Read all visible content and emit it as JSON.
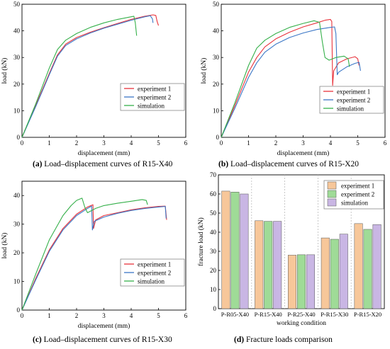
{
  "colors": {
    "experiment_1": "#e8323b",
    "experiment_2": "#3b77c6",
    "simulation": "#35b04a",
    "bar_1": "#f7c79a",
    "bar_2": "#9fdb97",
    "bar_3": "#c9b6e4"
  },
  "captions": [
    {
      "tag": "(a)",
      "text": " Load–displacement curves of R15-X40"
    },
    {
      "tag": "(b)",
      "text": " Load–displacement curves of R15-X20"
    },
    {
      "tag": "(c)",
      "text": " Load–displacement curves of R15-X30"
    },
    {
      "tag": "(d)",
      "text": " Fracture loads comparison"
    }
  ],
  "chart_data": [
    {
      "type": "line",
      "title": "",
      "xlabel": "displacement (mm)",
      "ylabel": "load (kN)",
      "xlim": [
        0,
        6
      ],
      "ylim": [
        0,
        50
      ],
      "xticks": [
        0,
        1,
        2,
        3,
        4,
        5,
        6
      ],
      "yticks": [
        0,
        10,
        20,
        30,
        40,
        50
      ],
      "legend": "lower-right",
      "series": [
        {
          "name": "experiment 1",
          "color": "#e8323b",
          "points": [
            [
              0,
              0
            ],
            [
              0.5,
              12
            ],
            [
              1.0,
              24
            ],
            [
              1.3,
              31
            ],
            [
              1.6,
              35
            ],
            [
              2.0,
              37.5
            ],
            [
              2.5,
              39.5
            ],
            [
              3.0,
              41.2
            ],
            [
              3.5,
              42.8
            ],
            [
              4.0,
              44.3
            ],
            [
              4.5,
              45.5
            ],
            [
              4.8,
              46.0
            ],
            [
              4.9,
              45.8
            ],
            [
              4.95,
              43.5
            ],
            [
              5.0,
              42.0
            ]
          ]
        },
        {
          "name": "experiment 2",
          "color": "#3b77c6",
          "points": [
            [
              0,
              0
            ],
            [
              0.5,
              11.5
            ],
            [
              1.0,
              23.5
            ],
            [
              1.3,
              30.5
            ],
            [
              1.6,
              34.5
            ],
            [
              2.0,
              37
            ],
            [
              2.5,
              39.2
            ],
            [
              3.0,
              41.0
            ],
            [
              3.5,
              42.5
            ],
            [
              4.0,
              44.0
            ],
            [
              4.5,
              45.3
            ],
            [
              4.7,
              45.7
            ],
            [
              4.78,
              44.5
            ],
            [
              4.8,
              43.0
            ]
          ]
        },
        {
          "name": "simulation",
          "color": "#35b04a",
          "points": [
            [
              0,
              0
            ],
            [
              0.5,
              12.5
            ],
            [
              1.0,
              26
            ],
            [
              1.3,
              33
            ],
            [
              1.6,
              36.5
            ],
            [
              2.0,
              39
            ],
            [
              2.5,
              41.3
            ],
            [
              3.0,
              43
            ],
            [
              3.5,
              44.3
            ],
            [
              4.0,
              45.3
            ],
            [
              4.1,
              45.5
            ],
            [
              4.15,
              43
            ],
            [
              4.2,
              38.2
            ]
          ]
        }
      ]
    },
    {
      "type": "line",
      "title": "",
      "xlabel": "displacement (mm)",
      "ylabel": "load (kN)",
      "xlim": [
        0,
        6
      ],
      "ylim": [
        0,
        50
      ],
      "xticks": [
        0,
        1,
        2,
        3,
        4,
        5,
        6
      ],
      "yticks": [
        0,
        10,
        20,
        30,
        40,
        50
      ],
      "legend": "lower-right",
      "series": [
        {
          "name": "experiment 1",
          "color": "#e8323b",
          "points": [
            [
              0,
              0
            ],
            [
              0.5,
              12
            ],
            [
              1.0,
              24.5
            ],
            [
              1.3,
              30
            ],
            [
              1.6,
              34
            ],
            [
              2.0,
              37
            ],
            [
              2.5,
              39.5
            ],
            [
              3.0,
              41.5
            ],
            [
              3.5,
              43
            ],
            [
              3.8,
              44
            ],
            [
              4.0,
              44.3
            ],
            [
              4.05,
              43.5
            ],
            [
              4.08,
              19.5
            ],
            [
              4.12,
              25
            ],
            [
              4.3,
              28
            ],
            [
              4.6,
              29.5
            ],
            [
              4.9,
              30.3
            ],
            [
              5.0,
              29.5
            ],
            [
              5.05,
              27
            ]
          ]
        },
        {
          "name": "experiment 2",
          "color": "#3b77c6",
          "points": [
            [
              0,
              0
            ],
            [
              0.5,
              11
            ],
            [
              1.0,
              22.5
            ],
            [
              1.3,
              28
            ],
            [
              1.6,
              32
            ],
            [
              2.0,
              35
            ],
            [
              2.5,
              37.5
            ],
            [
              3.0,
              39.2
            ],
            [
              3.5,
              40.5
            ],
            [
              4.0,
              41.3
            ],
            [
              4.15,
              41.5
            ],
            [
              4.2,
              39
            ],
            [
              4.25,
              23.5
            ],
            [
              4.3,
              24.5
            ],
            [
              4.6,
              26.5
            ],
            [
              4.9,
              27.8
            ],
            [
              5.05,
              28.2
            ],
            [
              5.1,
              25
            ]
          ]
        },
        {
          "name": "simulation",
          "color": "#35b04a",
          "points": [
            [
              0,
              0
            ],
            [
              0.5,
              13
            ],
            [
              1.0,
              27
            ],
            [
              1.3,
              33.5
            ],
            [
              1.6,
              36.5
            ],
            [
              2.0,
              39
            ],
            [
              2.5,
              41.3
            ],
            [
              3.0,
              42.8
            ],
            [
              3.4,
              43.8
            ],
            [
              3.6,
              43.2
            ],
            [
              3.7,
              36
            ],
            [
              3.8,
              30
            ],
            [
              3.95,
              29
            ],
            [
              4.2,
              30
            ],
            [
              4.5,
              30.5
            ],
            [
              4.65,
              29.5
            ],
            [
              4.7,
              26.5
            ]
          ]
        }
      ]
    },
    {
      "type": "line",
      "title": "",
      "xlabel": "displacement (mm)",
      "ylabel": "load (kN)",
      "xlim": [
        0,
        6
      ],
      "ylim": [
        0,
        45
      ],
      "xticks": [
        0,
        1,
        2,
        3,
        4,
        5,
        6
      ],
      "yticks": [
        0,
        10,
        20,
        30,
        40
      ],
      "legend": "lower-right",
      "series": [
        {
          "name": "experiment 1",
          "color": "#e8323b",
          "points": [
            [
              0,
              0
            ],
            [
              0.5,
              11
            ],
            [
              1.0,
              21
            ],
            [
              1.5,
              28.5
            ],
            [
              2.0,
              33.5
            ],
            [
              2.4,
              36
            ],
            [
              2.6,
              36.8
            ],
            [
              2.62,
              28.5
            ],
            [
              2.7,
              31.5
            ],
            [
              3.0,
              33
            ],
            [
              3.5,
              34
            ],
            [
              4.0,
              35
            ],
            [
              4.5,
              35.7
            ],
            [
              5.0,
              36.2
            ],
            [
              5.25,
              36.3
            ],
            [
              5.3,
              31.5
            ]
          ]
        },
        {
          "name": "experiment 2",
          "color": "#3b77c6",
          "points": [
            [
              0,
              0
            ],
            [
              0.5,
              10.5
            ],
            [
              1.0,
              20.5
            ],
            [
              1.5,
              28
            ],
            [
              2.0,
              33
            ],
            [
              2.4,
              35.5
            ],
            [
              2.55,
              36.3
            ],
            [
              2.58,
              28
            ],
            [
              2.65,
              31
            ],
            [
              3.0,
              32.5
            ],
            [
              3.5,
              33.8
            ],
            [
              4.0,
              34.8
            ],
            [
              4.5,
              35.5
            ],
            [
              5.0,
              36
            ],
            [
              5.25,
              36.2
            ],
            [
              5.28,
              32
            ]
          ]
        },
        {
          "name": "simulation",
          "color": "#35b04a",
          "points": [
            [
              0,
              0
            ],
            [
              0.5,
              12.5
            ],
            [
              1.0,
              24.5
            ],
            [
              1.5,
              33
            ],
            [
              1.8,
              36.5
            ],
            [
              2.0,
              38.3
            ],
            [
              2.2,
              39.1
            ],
            [
              2.3,
              36
            ],
            [
              2.4,
              34
            ],
            [
              2.7,
              35.5
            ],
            [
              3.0,
              36.5
            ],
            [
              3.5,
              37.3
            ],
            [
              4.0,
              38
            ],
            [
              4.4,
              38.6
            ],
            [
              4.55,
              38.3
            ],
            [
              4.6,
              36.8
            ]
          ]
        }
      ]
    },
    {
      "type": "bar",
      "title": "",
      "xlabel": "working condition",
      "ylabel": "fracture load (kN)",
      "ylim": [
        0,
        70
      ],
      "yticks": [
        0,
        10,
        20,
        30,
        40,
        50,
        60,
        70
      ],
      "legend": "top-right",
      "categories": [
        "P-R05-X40",
        "P-R15-X40",
        "P-R25-X40",
        "P-R15-X30",
        "P-R15-X20"
      ],
      "series": [
        {
          "name": "experiment 1",
          "color": "#f7c79a",
          "values": [
            61.5,
            46.0,
            28.0,
            37.0,
            44.5
          ]
        },
        {
          "name": "experiment 2",
          "color": "#9fdb97",
          "values": [
            61.0,
            45.7,
            28.2,
            36.3,
            41.5
          ]
        },
        {
          "name": "simulation",
          "color": "#c9b6e4",
          "values": [
            60.0,
            45.7,
            28.2,
            39.0,
            44.0
          ]
        }
      ]
    }
  ]
}
